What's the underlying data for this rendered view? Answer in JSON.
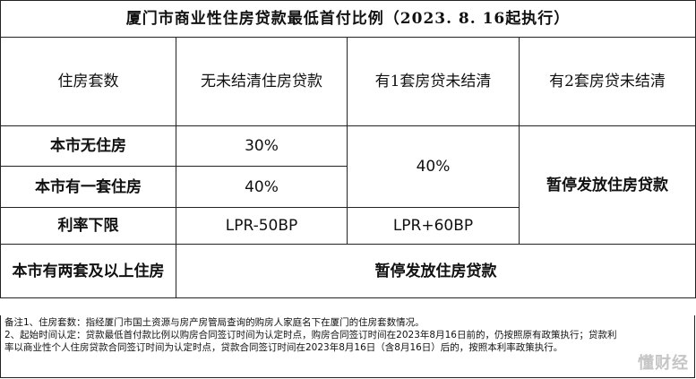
{
  "title": "厦门市商业性住房贷款最低首付比例（2023. 8. 16起执行）",
  "headers": {
    "col0": "住房套数",
    "col1": "无未结清住房贷款",
    "col2": "有1套房贷未结清",
    "col3": "有2套房贷未结清"
  },
  "rows": {
    "no_house_label": "本市无住房",
    "no_house_no_loan": "30%",
    "one_house_label": "本市有一套住房",
    "one_house_no_loan": "40%",
    "one_loan_merged": "40%",
    "two_loans_merged": "暂停发放住房贷款",
    "rate_label": "利率下限",
    "rate_no_loan": "LPR-50BP",
    "rate_one_loan": "LPR+60BP",
    "two_plus_label": "本市有两套及以上住房",
    "two_plus_value": "暂停发放住房贷款"
  },
  "notes": {
    "line1": "备注1、住房套数：指经厦门市国土资源与房产房管局查询的购房人家庭名下在厦门的住房套数情况。",
    "line2": "2、起始时间认定：贷款最低首付款比例以购房合同签订时间为认定时点，购房合同签订时间在2023年8月16日前的，仍按照原有政策执行；贷款利",
    "line3": "率以商业性个人住房贷款合同签订时间为认定时点，贷款合同签订时间在2023年8月16日（含8月16日）后的，按照本利率政策执行。"
  },
  "watermark": "懂财经"
}
